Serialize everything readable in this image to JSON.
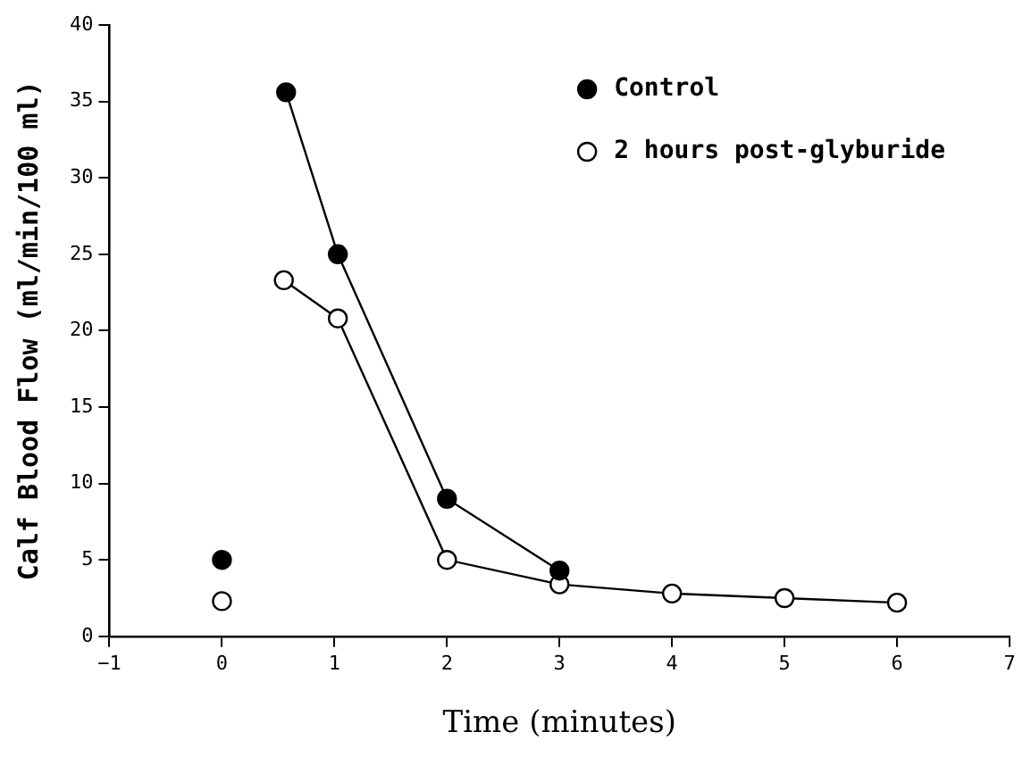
{
  "chart_data": {
    "type": "line",
    "xlabel": "Time (minutes)",
    "ylabel": "Calf Blood Flow (ml/min/100 ml)",
    "xlim": [
      -1,
      7
    ],
    "xticks": [
      -1,
      0,
      1,
      2,
      3,
      4,
      5,
      6,
      7
    ],
    "ylim": [
      0,
      40
    ],
    "yticks": [
      0,
      5,
      10,
      15,
      20,
      25,
      30,
      35,
      40
    ],
    "grid": false,
    "legend": "top right",
    "marker": "circle",
    "series": [
      {
        "type": "scatter",
        "color": "#000000",
        "x": [
          0
        ],
        "values": [
          5
        ]
      },
      {
        "type": "scatter",
        "color": "#ffffff",
        "x": [
          0
        ],
        "values": [
          2.3
        ]
      },
      {
        "name": "Control",
        "color": "#000000",
        "x": [
          0.57,
          1.03,
          2,
          3
        ],
        "values": [
          35.6,
          25,
          9,
          4.3
        ]
      },
      {
        "name": "2 hours post-glyburide",
        "color": "#ffffff",
        "x": [
          0.55,
          1.03,
          2,
          3,
          4,
          5,
          6
        ],
        "values": [
          23.3,
          20.8,
          5,
          3.4,
          2.8,
          2.5,
          2.2
        ]
      }
    ]
  }
}
